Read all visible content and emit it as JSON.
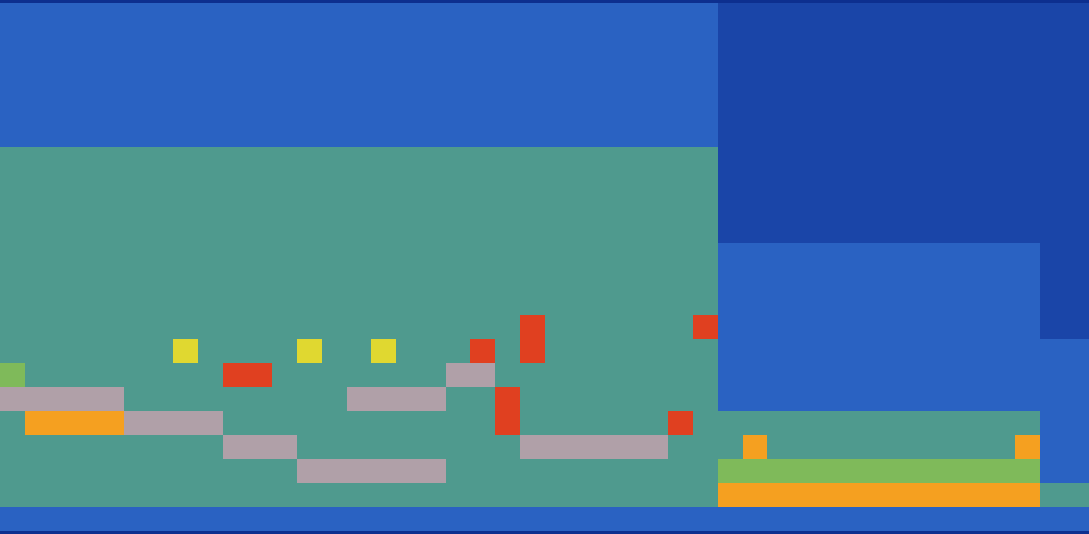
{
  "chart_data": {
    "type": "heatmap",
    "tick_labels": false,
    "levels": [
      0,
      1,
      2,
      3,
      4,
      5,
      6,
      7,
      8,
      9,
      10
    ],
    "colors": [
      "#08206e",
      "#0d2f8f",
      "#1a45a8",
      "#2a62c2",
      "#4f9a8e",
      "#7fba5a",
      "#e0d830",
      "#f5a020",
      "#e04020",
      "#b0a0a8",
      "#ffffff"
    ],
    "cells": [
      [
        3,
        3,
        3,
        3,
        3,
        3,
        3,
        3,
        3,
        3,
        3,
        3,
        3,
        3,
        3,
        3,
        3,
        3,
        3,
        3,
        3,
        3,
        3,
        3,
        3,
        3,
        3,
        3,
        3,
        2,
        2,
        2,
        2,
        2,
        2,
        2,
        2,
        2,
        2,
        2,
        2,
        2,
        2,
        2
      ],
      [
        3,
        3,
        3,
        3,
        3,
        3,
        3,
        3,
        3,
        3,
        3,
        3,
        3,
        3,
        3,
        3,
        3,
        3,
        3,
        3,
        3,
        3,
        3,
        3,
        3,
        3,
        3,
        3,
        3,
        2,
        2,
        2,
        2,
        2,
        2,
        2,
        2,
        2,
        2,
        2,
        2,
        2,
        2,
        2
      ],
      [
        3,
        3,
        3,
        3,
        3,
        3,
        3,
        3,
        3,
        3,
        3,
        3,
        3,
        3,
        3,
        3,
        3,
        3,
        3,
        3,
        3,
        3,
        3,
        3,
        3,
        3,
        3,
        3,
        3,
        2,
        2,
        2,
        2,
        2,
        2,
        2,
        2,
        2,
        2,
        2,
        2,
        2,
        2,
        2
      ],
      [
        3,
        3,
        3,
        3,
        3,
        3,
        3,
        3,
        3,
        3,
        3,
        3,
        3,
        3,
        3,
        3,
        3,
        3,
        3,
        3,
        3,
        3,
        3,
        3,
        3,
        3,
        3,
        3,
        3,
        2,
        2,
        2,
        2,
        2,
        2,
        2,
        2,
        2,
        2,
        2,
        2,
        2,
        2,
        2
      ],
      [
        3,
        3,
        3,
        3,
        3,
        3,
        3,
        3,
        3,
        3,
        3,
        3,
        3,
        3,
        3,
        3,
        3,
        3,
        3,
        3,
        3,
        3,
        3,
        3,
        3,
        3,
        3,
        3,
        3,
        2,
        2,
        2,
        2,
        2,
        2,
        2,
        2,
        2,
        2,
        2,
        2,
        2,
        2,
        2
      ],
      [
        3,
        3,
        3,
        3,
        3,
        3,
        3,
        3,
        3,
        3,
        3,
        3,
        3,
        3,
        3,
        3,
        3,
        3,
        3,
        3,
        3,
        3,
        3,
        3,
        3,
        3,
        3,
        3,
        3,
        2,
        2,
        2,
        2,
        2,
        2,
        2,
        2,
        2,
        2,
        2,
        2,
        2,
        2,
        2
      ],
      [
        4,
        4,
        4,
        4,
        4,
        4,
        4,
        4,
        4,
        4,
        4,
        4,
        4,
        4,
        4,
        4,
        4,
        4,
        4,
        4,
        4,
        4,
        4,
        4,
        4,
        4,
        4,
        4,
        4,
        2,
        2,
        2,
        2,
        2,
        2,
        2,
        2,
        2,
        2,
        2,
        2,
        2,
        2,
        2
      ],
      [
        4,
        4,
        4,
        4,
        4,
        4,
        4,
        4,
        4,
        4,
        4,
        4,
        4,
        4,
        4,
        4,
        4,
        4,
        4,
        4,
        4,
        4,
        4,
        4,
        4,
        4,
        4,
        4,
        4,
        2,
        2,
        2,
        2,
        2,
        2,
        2,
        2,
        2,
        2,
        2,
        2,
        2,
        2,
        2
      ],
      [
        4,
        4,
        4,
        4,
        4,
        4,
        4,
        4,
        4,
        4,
        4,
        4,
        4,
        4,
        4,
        4,
        4,
        4,
        4,
        4,
        4,
        4,
        4,
        4,
        4,
        4,
        4,
        4,
        4,
        2,
        2,
        2,
        2,
        2,
        2,
        2,
        2,
        2,
        2,
        2,
        2,
        2,
        2,
        2
      ],
      [
        4,
        4,
        4,
        4,
        4,
        4,
        4,
        4,
        4,
        4,
        4,
        4,
        4,
        4,
        4,
        4,
        4,
        4,
        4,
        4,
        4,
        4,
        4,
        4,
        4,
        4,
        4,
        4,
        4,
        2,
        2,
        2,
        2,
        2,
        2,
        2,
        2,
        2,
        2,
        2,
        2,
        2,
        2,
        2
      ],
      [
        4,
        4,
        4,
        4,
        4,
        4,
        4,
        4,
        4,
        4,
        4,
        4,
        4,
        4,
        4,
        4,
        4,
        4,
        4,
        4,
        4,
        4,
        4,
        4,
        4,
        4,
        4,
        4,
        4,
        3,
        3,
        3,
        3,
        3,
        3,
        3,
        3,
        3,
        3,
        3,
        3,
        3,
        2,
        2
      ],
      [
        4,
        4,
        4,
        4,
        4,
        4,
        4,
        4,
        4,
        4,
        4,
        4,
        4,
        4,
        4,
        4,
        4,
        4,
        4,
        4,
        4,
        4,
        4,
        4,
        4,
        4,
        4,
        4,
        4,
        3,
        3,
        3,
        3,
        3,
        3,
        3,
        3,
        3,
        3,
        3,
        3,
        3,
        2,
        2
      ],
      [
        4,
        4,
        4,
        4,
        4,
        4,
        4,
        4,
        4,
        4,
        4,
        4,
        4,
        4,
        4,
        4,
        4,
        4,
        4,
        4,
        4,
        4,
        4,
        4,
        4,
        4,
        4,
        4,
        4,
        3,
        3,
        3,
        3,
        3,
        3,
        3,
        3,
        3,
        3,
        3,
        3,
        3,
        2,
        2
      ],
      [
        4,
        4,
        4,
        4,
        4,
        4,
        4,
        4,
        4,
        4,
        4,
        4,
        4,
        4,
        4,
        4,
        4,
        4,
        4,
        4,
        4,
        8,
        4,
        4,
        4,
        4,
        4,
        4,
        8,
        3,
        3,
        3,
        3,
        3,
        3,
        3,
        3,
        3,
        3,
        3,
        3,
        3,
        2,
        2
      ],
      [
        4,
        4,
        4,
        4,
        4,
        4,
        4,
        6,
        4,
        4,
        4,
        4,
        6,
        4,
        4,
        6,
        4,
        4,
        4,
        8,
        4,
        8,
        4,
        4,
        4,
        4,
        4,
        4,
        4,
        3,
        3,
        3,
        3,
        3,
        3,
        3,
        3,
        3,
        3,
        3,
        3,
        3,
        3,
        3
      ],
      [
        5,
        4,
        4,
        4,
        4,
        4,
        4,
        4,
        4,
        8,
        8,
        4,
        4,
        4,
        4,
        4,
        4,
        4,
        9,
        9,
        4,
        4,
        4,
        4,
        4,
        4,
        4,
        4,
        4,
        3,
        3,
        3,
        3,
        3,
        3,
        3,
        3,
        3,
        3,
        3,
        3,
        3,
        3,
        3
      ],
      [
        9,
        9,
        9,
        9,
        9,
        4,
        4,
        4,
        4,
        4,
        4,
        4,
        4,
        4,
        9,
        9,
        9,
        9,
        4,
        4,
        8,
        4,
        4,
        4,
        4,
        4,
        4,
        4,
        4,
        3,
        3,
        3,
        3,
        3,
        3,
        3,
        3,
        3,
        3,
        3,
        3,
        3,
        3,
        3
      ],
      [
        4,
        7,
        7,
        7,
        7,
        9,
        9,
        9,
        9,
        4,
        4,
        4,
        4,
        4,
        4,
        4,
        4,
        4,
        4,
        4,
        8,
        4,
        4,
        4,
        4,
        4,
        4,
        8,
        4,
        4,
        4,
        4,
        4,
        4,
        4,
        4,
        4,
        4,
        4,
        4,
        4,
        4,
        3,
        3
      ],
      [
        4,
        4,
        4,
        4,
        4,
        4,
        4,
        4,
        4,
        9,
        9,
        9,
        4,
        4,
        4,
        4,
        4,
        4,
        4,
        4,
        4,
        9,
        9,
        9,
        9,
        9,
        9,
        4,
        4,
        4,
        7,
        4,
        4,
        4,
        4,
        4,
        4,
        4,
        4,
        4,
        4,
        7,
        3,
        3
      ],
      [
        4,
        4,
        4,
        4,
        4,
        4,
        4,
        4,
        4,
        4,
        4,
        4,
        9,
        9,
        9,
        9,
        9,
        9,
        4,
        4,
        4,
        4,
        4,
        4,
        4,
        4,
        4,
        4,
        4,
        5,
        5,
        5,
        5,
        5,
        5,
        5,
        5,
        5,
        5,
        5,
        5,
        5,
        3,
        3
      ],
      [
        4,
        4,
        4,
        4,
        4,
        4,
        4,
        4,
        4,
        4,
        4,
        4,
        4,
        4,
        4,
        4,
        4,
        4,
        4,
        4,
        4,
        4,
        4,
        4,
        4,
        4,
        4,
        4,
        4,
        7,
        7,
        7,
        7,
        7,
        7,
        7,
        7,
        7,
        7,
        7,
        7,
        7,
        4,
        4
      ],
      [
        3,
        3,
        3,
        3,
        3,
        3,
        3,
        3,
        3,
        3,
        3,
        3,
        3,
        3,
        3,
        3,
        3,
        3,
        3,
        3,
        3,
        3,
        3,
        3,
        3,
        3,
        3,
        3,
        3,
        3,
        3,
        3,
        3,
        3,
        3,
        3,
        3,
        3,
        3,
        3,
        3,
        3,
        3,
        3
      ]
    ]
  }
}
